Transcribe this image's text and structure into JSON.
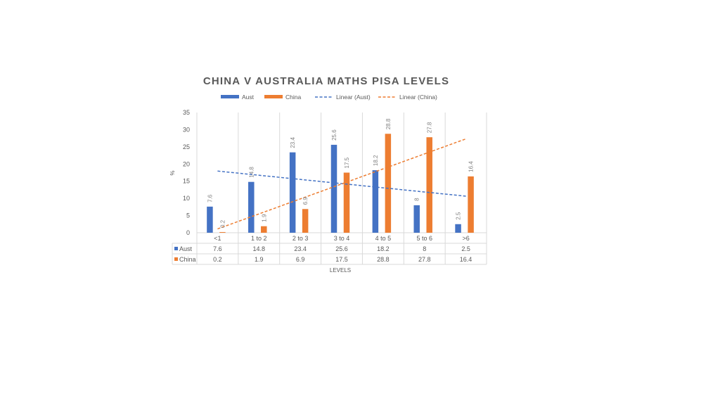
{
  "chart_data": {
    "type": "bar",
    "title": "CHINA V AUSTRALIA MATHS PISA LEVELS",
    "xlabel": "LEVELS",
    "ylabel": "%",
    "ylim": [
      0,
      35
    ],
    "yticks": [
      0,
      5,
      10,
      15,
      20,
      25,
      30,
      35
    ],
    "grid": "vertical",
    "legend_position": "top",
    "categories": [
      "<1",
      "1 to 2",
      "2 to 3",
      "3 to 4",
      "4 to 5",
      "5 to 6",
      ">6"
    ],
    "series": [
      {
        "name": "Aust",
        "color": "#4472c4",
        "values": [
          7.6,
          14.8,
          23.4,
          25.6,
          18.2,
          8,
          2.5
        ]
      },
      {
        "name": "China",
        "color": "#ed7d31",
        "values": [
          0.2,
          1.9,
          6.9,
          17.5,
          28.8,
          27.8,
          16.4
        ]
      }
    ],
    "trendlines": [
      {
        "name": "Linear (Aust)",
        "series": "Aust",
        "type": "linear",
        "color": "#4472c4"
      },
      {
        "name": "Linear (China)",
        "series": "China",
        "type": "linear",
        "color": "#ed7d31"
      }
    ],
    "data_table": true
  }
}
